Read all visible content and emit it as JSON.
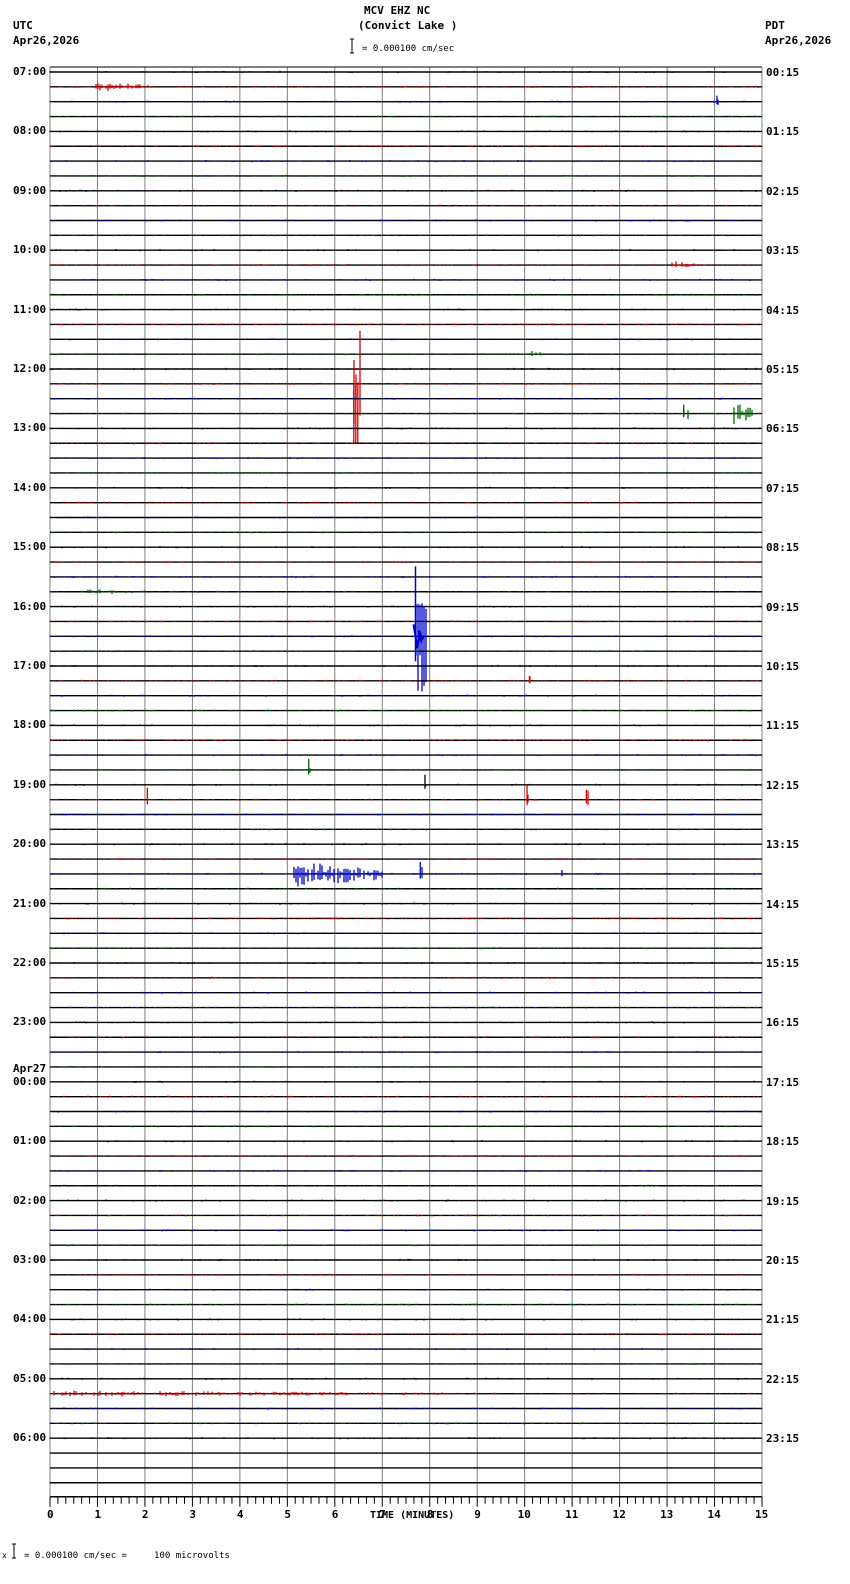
{
  "header": {
    "station": "MCV EHZ NC",
    "location": "(Convict Lake )",
    "left_tz": "UTC",
    "left_date": "Apr26,2026",
    "right_tz": "PDT",
    "right_date": "Apr26,2026",
    "scale_text": "= 0.000100 cm/sec"
  },
  "footer": {
    "scale_text": "= 0.000100 cm/sec =     100 microvolts",
    "prefix": "x"
  },
  "colors": {
    "trace_colors": [
      "#000000",
      "#dd0000",
      "#0000cc",
      "#006600"
    ],
    "grid": "#808080",
    "baseline": "#000000"
  },
  "chart_data": {
    "type": "line",
    "title": "MCV EHZ NC (Convict Lake )",
    "xlabel": "TIME (MINUTES)",
    "ylabel": "",
    "x_ticks": [
      "0",
      "1",
      "2",
      "3",
      "4",
      "5",
      "6",
      "7",
      "8",
      "9",
      "10",
      "11",
      "12",
      "13",
      "14",
      "15"
    ],
    "xlim": [
      0,
      15
    ],
    "minor_ticks_per_minute": 6,
    "grid": true,
    "rows_per_hour": 4,
    "left_labels": [
      {
        "row": 0,
        "text": "07:00"
      },
      {
        "row": 4,
        "text": "08:00"
      },
      {
        "row": 8,
        "text": "09:00"
      },
      {
        "row": 12,
        "text": "10:00"
      },
      {
        "row": 16,
        "text": "11:00"
      },
      {
        "row": 20,
        "text": "12:00"
      },
      {
        "row": 24,
        "text": "13:00"
      },
      {
        "row": 28,
        "text": "14:00"
      },
      {
        "row": 32,
        "text": "15:00"
      },
      {
        "row": 36,
        "text": "16:00"
      },
      {
        "row": 40,
        "text": "17:00"
      },
      {
        "row": 44,
        "text": "18:00"
      },
      {
        "row": 48,
        "text": "19:00"
      },
      {
        "row": 52,
        "text": "20:00"
      },
      {
        "row": 56,
        "text": "21:00"
      },
      {
        "row": 60,
        "text": "22:00"
      },
      {
        "row": 64,
        "text": "23:00"
      },
      {
        "row": 68,
        "text": "00:00",
        "date": "Apr27"
      },
      {
        "row": 72,
        "text": "01:00"
      },
      {
        "row": 76,
        "text": "02:00"
      },
      {
        "row": 80,
        "text": "03:00"
      },
      {
        "row": 84,
        "text": "04:00"
      },
      {
        "row": 88,
        "text": "05:00"
      },
      {
        "row": 92,
        "text": "06:00"
      }
    ],
    "right_labels": [
      {
        "row": 0,
        "text": "00:15"
      },
      {
        "row": 4,
        "text": "01:15"
      },
      {
        "row": 8,
        "text": "02:15"
      },
      {
        "row": 12,
        "text": "03:15"
      },
      {
        "row": 16,
        "text": "04:15"
      },
      {
        "row": 20,
        "text": "05:15"
      },
      {
        "row": 24,
        "text": "06:15"
      },
      {
        "row": 28,
        "text": "07:15"
      },
      {
        "row": 32,
        "text": "08:15"
      },
      {
        "row": 36,
        "text": "09:15"
      },
      {
        "row": 40,
        "text": "10:15"
      },
      {
        "row": 44,
        "text": "11:15"
      },
      {
        "row": 48,
        "text": "12:15"
      },
      {
        "row": 52,
        "text": "13:15"
      },
      {
        "row": 56,
        "text": "14:15"
      },
      {
        "row": 60,
        "text": "15:15"
      },
      {
        "row": 64,
        "text": "16:15"
      },
      {
        "row": 68,
        "text": "17:15"
      },
      {
        "row": 72,
        "text": "18:15"
      },
      {
        "row": 76,
        "text": "19:15"
      },
      {
        "row": 80,
        "text": "20:15"
      },
      {
        "row": 84,
        "text": "21:15"
      },
      {
        "row": 88,
        "text": "22:15"
      },
      {
        "row": 92,
        "text": "23:15"
      }
    ],
    "total_rows": 96,
    "last_data_row": 92,
    "events": [
      {
        "row": 1,
        "start_min": 0.95,
        "end_min": 2.2,
        "amp": 5,
        "type": "burst"
      },
      {
        "row": 2,
        "start_min": 14.05,
        "end_min": 14.1,
        "amp": 6,
        "type": "spike"
      },
      {
        "row": 13,
        "start_min": 13.1,
        "end_min": 13.6,
        "amp": 4,
        "type": "burst"
      },
      {
        "row": 19,
        "start_min": 10.1,
        "end_min": 10.4,
        "amp": 4,
        "type": "burst"
      },
      {
        "row": 21,
        "start_min": 6.4,
        "end_min": 6.55,
        "amp": 60,
        "type": "big"
      },
      {
        "row": 23,
        "start_min": 13.35,
        "end_min": 13.45,
        "amp": 9,
        "type": "spike"
      },
      {
        "row": 23,
        "start_min": 14.4,
        "end_min": 14.8,
        "amp": 12,
        "type": "burst"
      },
      {
        "row": 35,
        "start_min": 0.8,
        "end_min": 2.0,
        "amp": 3,
        "type": "burst"
      },
      {
        "row": 38,
        "start_min": 7.7,
        "end_min": 7.95,
        "amp": 70,
        "type": "quake"
      },
      {
        "row": 41,
        "start_min": 10.1,
        "end_min": 10.15,
        "amp": 5,
        "type": "spike"
      },
      {
        "row": 47,
        "start_min": 5.45,
        "end_min": 5.5,
        "amp": 11,
        "type": "spike"
      },
      {
        "row": 48,
        "start_min": 7.9,
        "end_min": 7.95,
        "amp": 10,
        "type": "spike"
      },
      {
        "row": 49,
        "start_min": 2.05,
        "end_min": 2.1,
        "amp": 12,
        "type": "spike"
      },
      {
        "row": 49,
        "start_min": 10.05,
        "end_min": 10.1,
        "amp": 14,
        "type": "spike"
      },
      {
        "row": 49,
        "start_min": 11.3,
        "end_min": 11.35,
        "amp": 10,
        "type": "spike"
      },
      {
        "row": 54,
        "start_min": 5.1,
        "end_min": 7.0,
        "amp": 14,
        "type": "burst"
      },
      {
        "row": 54,
        "start_min": 7.8,
        "end_min": 7.85,
        "amp": 12,
        "type": "spike"
      },
      {
        "row": 54,
        "start_min": 10.75,
        "end_min": 10.9,
        "amp": 8,
        "type": "burst"
      },
      {
        "row": 89,
        "start_min": 0.0,
        "end_min": 9.0,
        "amp": 3,
        "type": "noisy"
      }
    ]
  }
}
